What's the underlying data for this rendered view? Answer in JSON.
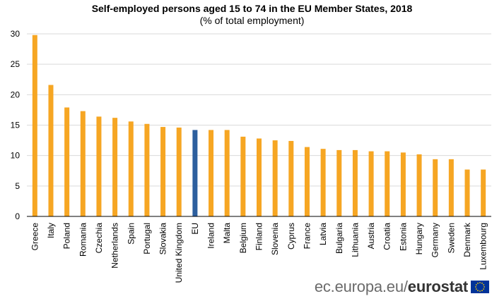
{
  "chart_data": {
    "type": "bar",
    "title": "Self-employed persons aged 15 to 74 in the EU Member States, 2018",
    "subtitle": "(% of total employment)",
    "categories": [
      "Greece",
      "Italy",
      "Poland",
      "Romania",
      "Czechia",
      "Netherlands",
      "Spain",
      "Portugal",
      "Slovakia",
      "United Kingdom",
      "EU",
      "Ireland",
      "Malta",
      "Belgium",
      "Finland",
      "Slovenia",
      "Cyprus",
      "France",
      "Latvia",
      "Bulgaria",
      "Lithuania",
      "Austria",
      "Croatia",
      "Estonia",
      "Hungary",
      "Germany",
      "Sweden",
      "Denmark",
      "Luxembourg"
    ],
    "values": [
      29.8,
      21.6,
      17.9,
      17.3,
      16.4,
      16.2,
      15.6,
      15.2,
      14.7,
      14.6,
      14.2,
      14.2,
      14.2,
      13.1,
      12.8,
      12.5,
      12.4,
      11.4,
      11.1,
      10.9,
      10.9,
      10.7,
      10.7,
      10.5,
      10.2,
      9.4,
      9.4,
      7.7,
      7.7
    ],
    "highlight_category": "EU",
    "ylim": [
      0,
      30
    ],
    "yticks": [
      "0",
      "5",
      "10",
      "15",
      "20",
      "25",
      "30"
    ],
    "grid": true,
    "colors": {
      "bar": "#f6a623",
      "highlight": "#2d5f9e",
      "grid": "#d9d9d9",
      "axis": "#000000"
    }
  },
  "footer": {
    "site": "ec.europa.eu/",
    "brand": "eurostat"
  }
}
